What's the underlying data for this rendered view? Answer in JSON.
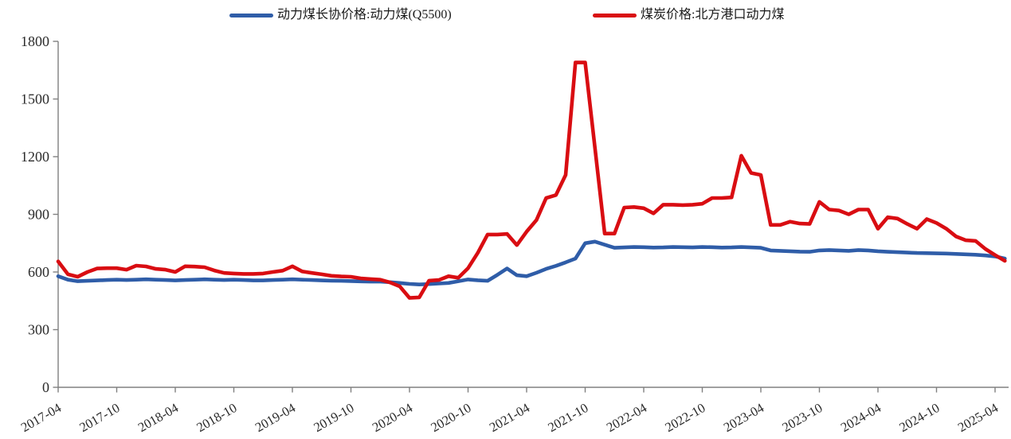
{
  "legend": {
    "items": [
      {
        "id": "long-term-contract",
        "label": "动力煤长协价格:动力煤(Q5500)",
        "color": "#2F5DA8"
      },
      {
        "id": "spot-north-port",
        "label": "煤炭价格:北方港口动力煤",
        "color": "#D90D12"
      }
    ]
  },
  "axes": {
    "y_tick_labels": [
      "0",
      "300",
      "600",
      "900",
      "1200",
      "1500",
      "1800"
    ],
    "x_tick_labels": [
      "2017-04",
      "2017-10",
      "2018-04",
      "2018-10",
      "2019-04",
      "2019-10",
      "2020-04",
      "2020-10",
      "2021-04",
      "2021-10",
      "2022-04",
      "2022-10",
      "2023-04",
      "2023-10",
      "2024-04",
      "2024-10",
      "2025-04"
    ],
    "axis_color": "#808080",
    "label_color": "#2b2b2b"
  },
  "chart_data": {
    "type": "line",
    "title": "",
    "xlabel": "",
    "ylabel": "",
    "ylim": [
      0,
      1800
    ],
    "yticks": [
      0,
      300,
      600,
      900,
      1200,
      1500,
      1800
    ],
    "grid": false,
    "legend_position": "top",
    "x_tick_every_months": 6,
    "x": [
      "2017-04",
      "2017-05",
      "2017-06",
      "2017-07",
      "2017-08",
      "2017-09",
      "2017-10",
      "2017-11",
      "2017-12",
      "2018-01",
      "2018-02",
      "2018-03",
      "2018-04",
      "2018-05",
      "2018-06",
      "2018-07",
      "2018-08",
      "2018-09",
      "2018-10",
      "2018-11",
      "2018-12",
      "2019-01",
      "2019-02",
      "2019-03",
      "2019-04",
      "2019-05",
      "2019-06",
      "2019-07",
      "2019-08",
      "2019-09",
      "2019-10",
      "2019-11",
      "2019-12",
      "2020-01",
      "2020-02",
      "2020-03",
      "2020-04",
      "2020-05",
      "2020-06",
      "2020-07",
      "2020-08",
      "2020-09",
      "2020-10",
      "2020-11",
      "2020-12",
      "2021-01",
      "2021-02",
      "2021-03",
      "2021-04",
      "2021-05",
      "2021-06",
      "2021-07",
      "2021-08",
      "2021-09",
      "2021-10",
      "2021-11",
      "2021-12",
      "2022-01",
      "2022-02",
      "2022-03",
      "2022-04",
      "2022-05",
      "2022-06",
      "2022-07",
      "2022-08",
      "2022-09",
      "2022-10",
      "2022-11",
      "2022-12",
      "2023-01",
      "2023-02",
      "2023-03",
      "2023-04",
      "2023-05",
      "2023-06",
      "2023-07",
      "2023-08",
      "2023-09",
      "2023-10",
      "2023-11",
      "2023-12",
      "2024-01",
      "2024-02",
      "2024-03",
      "2024-04",
      "2024-05",
      "2024-06",
      "2024-07",
      "2024-08",
      "2024-09",
      "2024-10",
      "2024-11",
      "2024-12",
      "2025-01",
      "2025-02",
      "2025-03",
      "2025-04",
      "2025-05"
    ],
    "series": [
      {
        "id": "long-term-contract",
        "name": "动力煤长协价格:动力煤(Q5500)",
        "color": "#2F5DA8",
        "values": [
          578,
          560,
          552,
          554,
          556,
          558,
          560,
          558,
          560,
          562,
          560,
          558,
          556,
          558,
          560,
          562,
          560,
          558,
          560,
          558,
          556,
          556,
          558,
          560,
          562,
          560,
          558,
          556,
          555,
          554,
          553,
          551,
          550,
          550,
          547,
          543,
          538,
          535,
          537,
          540,
          543,
          552,
          561,
          557,
          554,
          585,
          618,
          583,
          578,
          596,
          616,
          632,
          650,
          670,
          750,
          758,
          742,
          726,
          728,
          730,
          729,
          727,
          728,
          730,
          729,
          728,
          730,
          729,
          727,
          728,
          730,
          728,
          726,
          712,
          710,
          708,
          706,
          705,
          712,
          714,
          712,
          710,
          714,
          712,
          708,
          705,
          703,
          701,
          699,
          698,
          697,
          696,
          694,
          692,
          690,
          686,
          681,
          670
        ]
      },
      {
        "id": "spot-north-port",
        "name": "煤炭价格:北方港口动力煤",
        "color": "#D90D12",
        "values": [
          655,
          588,
          575,
          600,
          618,
          620,
          620,
          612,
          633,
          629,
          616,
          612,
          600,
          630,
          628,
          625,
          608,
          595,
          592,
          590,
          590,
          592,
          600,
          607,
          630,
          603,
          595,
          588,
          580,
          577,
          575,
          567,
          563,
          560,
          546,
          525,
          465,
          468,
          555,
          558,
          578,
          570,
          620,
          700,
          795,
          795,
          798,
          740,
          810,
          870,
          985,
          1000,
          1105,
          1690,
          1690,
          1245,
          800,
          800,
          935,
          938,
          932,
          905,
          950,
          950,
          948,
          950,
          955,
          985,
          985,
          988,
          1205,
          1115,
          1105,
          845,
          845,
          862,
          852,
          850,
          965,
          925,
          920,
          900,
          925,
          925,
          825,
          885,
          878,
          850,
          825,
          875,
          855,
          825,
          785,
          765,
          762,
          720,
          688,
          658
        ]
      }
    ]
  }
}
